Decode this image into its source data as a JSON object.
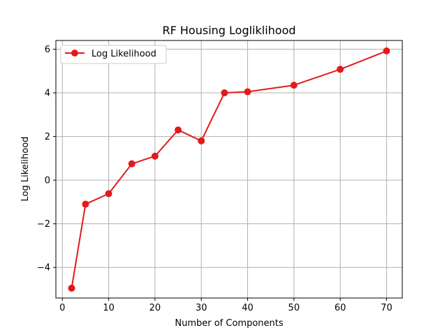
{
  "chart_data": {
    "type": "line",
    "title": "RF Housing Logliklihood",
    "xlabel": "Number of Components",
    "ylabel": "Log Likelihood",
    "xlim": [
      -1.4,
      73.4
    ],
    "ylim": [
      -5.4,
      6.4
    ],
    "xticks": [
      0,
      10,
      20,
      30,
      40,
      50,
      60,
      70
    ],
    "yticks": [
      -4,
      -2,
      0,
      2,
      4,
      6
    ],
    "xtick_labels": [
      "0",
      "10",
      "20",
      "30",
      "40",
      "50",
      "60",
      "70"
    ],
    "ytick_labels": [
      "−4",
      "−2",
      "0",
      "2",
      "4",
      "6"
    ],
    "grid": true,
    "legend_position": "top-left",
    "series": [
      {
        "name": "Log Likelihood",
        "color": "#e31a1c",
        "marker": "circle",
        "x": [
          2,
          5,
          10,
          15,
          20,
          25,
          30,
          35,
          40,
          50,
          60,
          70
        ],
        "y": [
          -4.95,
          -1.1,
          -0.62,
          0.75,
          1.1,
          2.3,
          1.8,
          4.0,
          4.05,
          4.35,
          5.08,
          5.92
        ]
      }
    ]
  }
}
